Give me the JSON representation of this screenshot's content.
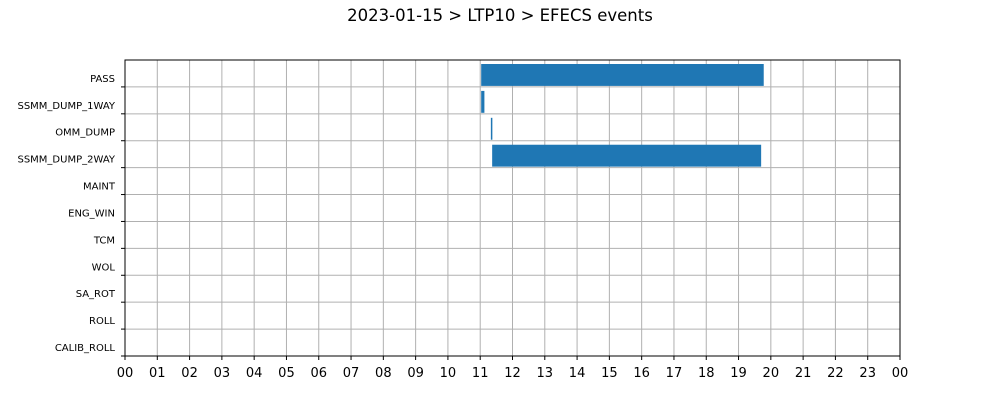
{
  "chart_data": {
    "type": "bar",
    "orientation": "horizontal",
    "title": "2023-01-15 > LTP10 > EFECS events",
    "xlabel": "",
    "ylabel": "",
    "xlim": [
      0,
      24
    ],
    "grid": true,
    "bar_color": "#1f77b4",
    "categories": [
      "PASS",
      "SSMM_DUMP_1WAY",
      "OMM_DUMP",
      "SSMM_DUMP_2WAY",
      "MAINT",
      "ENG_WIN",
      "TCM",
      "WOL",
      "SA_ROT",
      "ROLL",
      "CALIB_ROLL"
    ],
    "x_tick_labels": [
      "00",
      "01",
      "02",
      "03",
      "04",
      "05",
      "06",
      "07",
      "08",
      "09",
      "10",
      "11",
      "12",
      "13",
      "14",
      "15",
      "16",
      "17",
      "18",
      "19",
      "20",
      "21",
      "22",
      "23",
      "00"
    ],
    "events": [
      {
        "category": "PASS",
        "start": 11.03,
        "end": 19.78
      },
      {
        "category": "SSMM_DUMP_1WAY",
        "start": 11.03,
        "end": 11.13
      },
      {
        "category": "OMM_DUMP",
        "start": 11.33,
        "end": 11.37
      },
      {
        "category": "SSMM_DUMP_2WAY",
        "start": 11.37,
        "end": 19.7
      }
    ]
  }
}
